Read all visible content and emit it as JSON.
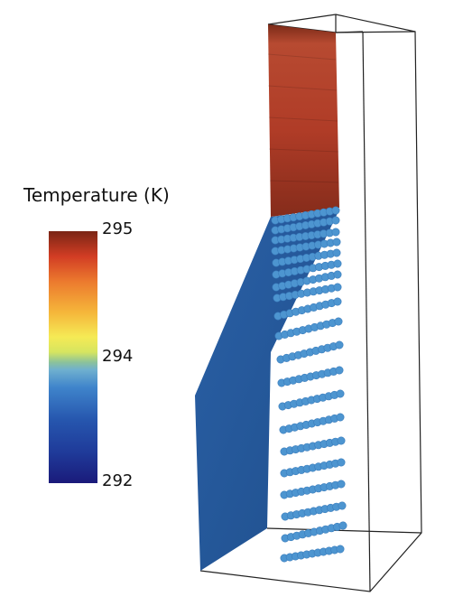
{
  "legend": {
    "title": "Temperature (K)",
    "ticks": [
      "295",
      "294",
      "292"
    ]
  },
  "colormap": [
    "#1a1a7a",
    "#1f3a99",
    "#2252b0",
    "#2f6cc2",
    "#4a8dcf",
    "#6fb0cf",
    "#8cc29a",
    "#c8e070",
    "#f3ef5a",
    "#f7c53c",
    "#f09a31",
    "#e5632a",
    "#cc3a25",
    "#a82a1e",
    "#7a2515"
  ],
  "scene": {
    "hot_color": "#b5402a",
    "cold_color": "#2b5fa3",
    "tube_color": "#4d95d0"
  }
}
